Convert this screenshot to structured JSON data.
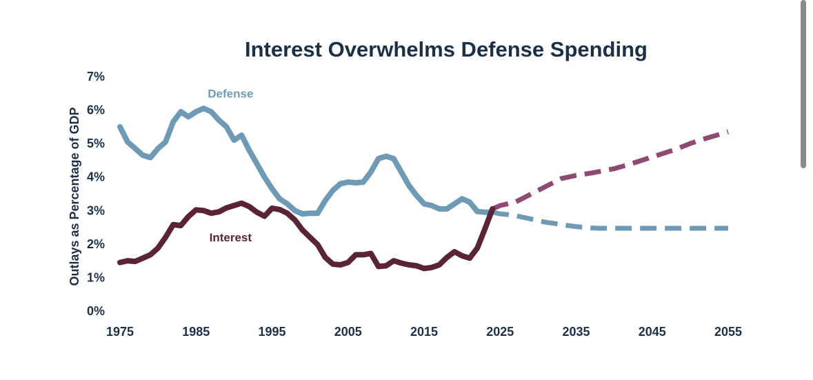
{
  "chart_data": {
    "type": "line",
    "title": "Interest Overwhelms Defense Spending",
    "xlabel": "",
    "ylabel": "Outlays as Percentage of GDP",
    "xlim": [
      1975,
      2055
    ],
    "ylim": [
      0,
      7
    ],
    "xticks": [
      1975,
      1985,
      1995,
      2005,
      2015,
      2025,
      2035,
      2045,
      2055
    ],
    "yticks": [
      0,
      1,
      2,
      3,
      4,
      5,
      6,
      7
    ],
    "ytick_labels": [
      "0%",
      "1%",
      "2%",
      "3%",
      "4%",
      "5%",
      "6%",
      "7%"
    ],
    "grid": false,
    "series": [
      {
        "name": "Defense",
        "color": "#6f9ab5",
        "projection_color": "#6f9ab5",
        "historical": {
          "x": [
            1975,
            1976,
            1977,
            1978,
            1979,
            1980,
            1981,
            1982,
            1983,
            1984,
            1985,
            1986,
            1987,
            1988,
            1989,
            1990,
            1991,
            1992,
            1993,
            1994,
            1995,
            1996,
            1997,
            1998,
            1999,
            2000,
            2001,
            2002,
            2003,
            2004,
            2005,
            2006,
            2007,
            2008,
            2009,
            2010,
            2011,
            2012,
            2013,
            2014,
            2015,
            2016,
            2017,
            2018,
            2019,
            2020,
            2021,
            2022,
            2023,
            2024
          ],
          "y": [
            5.5,
            5.05,
            4.85,
            4.65,
            4.58,
            4.85,
            5.05,
            5.65,
            5.95,
            5.8,
            5.95,
            6.05,
            5.95,
            5.7,
            5.5,
            5.1,
            5.25,
            4.8,
            4.4,
            4.0,
            3.65,
            3.35,
            3.2,
            3.0,
            2.9,
            2.92,
            2.92,
            3.3,
            3.6,
            3.8,
            3.85,
            3.83,
            3.85,
            4.15,
            4.55,
            4.62,
            4.55,
            4.15,
            3.75,
            3.45,
            3.2,
            3.15,
            3.05,
            3.05,
            3.2,
            3.35,
            3.25,
            2.97,
            2.95,
            2.95
          ]
        },
        "projection": {
          "x": [
            2024,
            2025,
            2026,
            2027,
            2028,
            2029,
            2030,
            2031,
            2032,
            2033,
            2034,
            2035,
            2036,
            2037,
            2038,
            2039,
            2040,
            2045,
            2050,
            2055
          ],
          "y": [
            2.95,
            2.9,
            2.88,
            2.85,
            2.8,
            2.75,
            2.7,
            2.65,
            2.62,
            2.58,
            2.55,
            2.52,
            2.5,
            2.48,
            2.47,
            2.47,
            2.47,
            2.47,
            2.47,
            2.47
          ]
        }
      },
      {
        "name": "Interest",
        "color": "#5a2338",
        "projection_color": "#8e4a72",
        "historical": {
          "x": [
            1975,
            1976,
            1977,
            1978,
            1979,
            1980,
            1981,
            1982,
            1983,
            1984,
            1985,
            1986,
            1987,
            1988,
            1989,
            1990,
            1991,
            1992,
            1993,
            1994,
            1995,
            1996,
            1997,
            1998,
            1999,
            2000,
            2001,
            2002,
            2003,
            2004,
            2005,
            2006,
            2007,
            2008,
            2009,
            2010,
            2011,
            2012,
            2013,
            2014,
            2015,
            2016,
            2017,
            2018,
            2019,
            2020,
            2021,
            2022,
            2023,
            2024
          ],
          "y": [
            1.45,
            1.5,
            1.48,
            1.58,
            1.68,
            1.88,
            2.2,
            2.58,
            2.55,
            2.82,
            3.02,
            3.0,
            2.92,
            2.96,
            3.08,
            3.15,
            3.22,
            3.12,
            2.95,
            2.83,
            3.07,
            3.03,
            2.92,
            2.72,
            2.42,
            2.2,
            1.98,
            1.6,
            1.4,
            1.38,
            1.45,
            1.68,
            1.68,
            1.72,
            1.33,
            1.35,
            1.5,
            1.43,
            1.38,
            1.35,
            1.27,
            1.3,
            1.38,
            1.6,
            1.77,
            1.65,
            1.58,
            1.88,
            2.45,
            3.05
          ]
        },
        "projection": {
          "x": [
            2024,
            2025,
            2027,
            2030,
            2033,
            2035,
            2037,
            2040,
            2042,
            2045,
            2048,
            2050,
            2052,
            2055
          ],
          "y": [
            3.05,
            3.15,
            3.25,
            3.6,
            3.95,
            4.05,
            4.12,
            4.25,
            4.38,
            4.6,
            4.82,
            5.0,
            5.15,
            5.35
          ]
        }
      }
    ],
    "annotations": [
      {
        "text": "Defense",
        "series": "Defense",
        "x": 1989,
        "y": 6.5
      },
      {
        "text": "Interest",
        "series": "Interest",
        "x": 1989,
        "y": 2.2
      }
    ]
  }
}
